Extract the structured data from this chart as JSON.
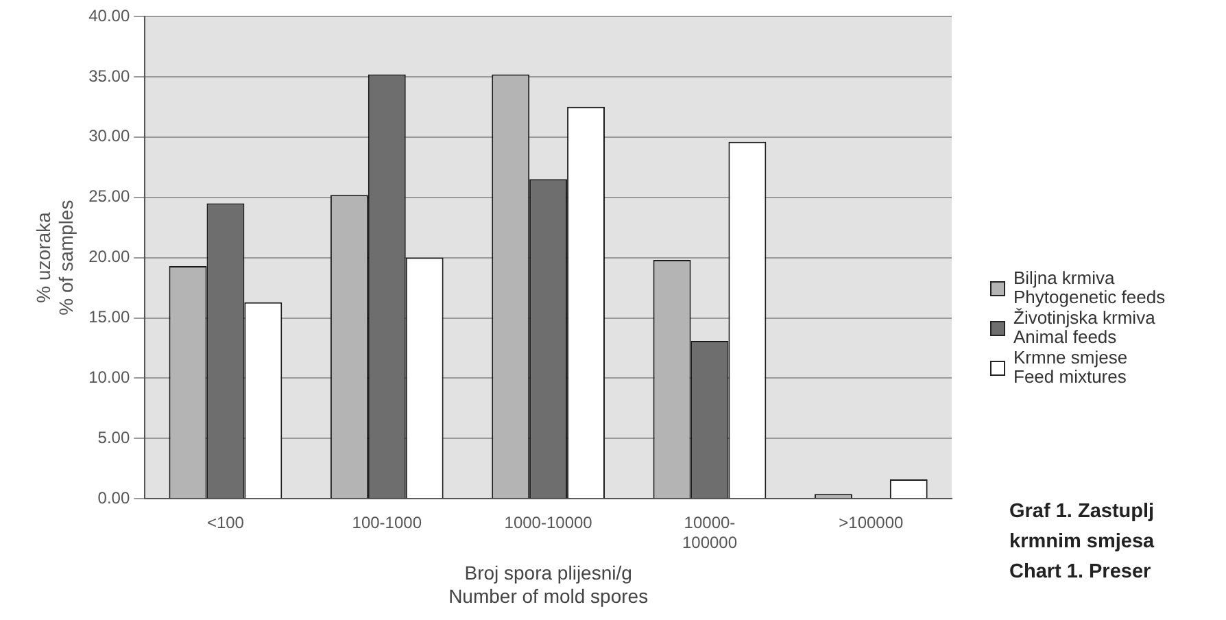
{
  "chart_data": {
    "type": "bar",
    "xlabel": "Broj spora plijesni/g\nNumber of mold spores",
    "ylabel": "% uzoraka\n% of samples",
    "categories": [
      "<100",
      "100-1000",
      "1000-10000",
      "10000-100000",
      ">100000"
    ],
    "series": [
      {
        "name": "Biljna krmiva\nPhytogenetic feeds",
        "color": "#b4b4b4",
        "values": [
          19.3,
          25.2,
          35.2,
          19.8,
          0.4
        ]
      },
      {
        "name": "Životinjska krmiva\nAnimal feeds",
        "color": "#6e6e6e",
        "values": [
          24.5,
          35.2,
          26.5,
          13.1,
          0
        ]
      },
      {
        "name": "Krmne smjese\nFeed mixtures",
        "color": "#ffffff",
        "values": [
          16.3,
          20.0,
          32.5,
          29.6,
          1.6
        ]
      }
    ],
    "ylim": [
      0,
      40
    ],
    "yticks": [
      {
        "value": 0,
        "label": "0.00"
      },
      {
        "value": 5,
        "label": "5.00"
      },
      {
        "value": 10,
        "label": "10.00"
      },
      {
        "value": 15,
        "label": "15.00"
      },
      {
        "value": 20,
        "label": "20.00"
      },
      {
        "value": 25,
        "label": "25.00"
      },
      {
        "value": 30,
        "label": "30.00"
      },
      {
        "value": 35,
        "label": "35.00"
      },
      {
        "value": 40,
        "label": "40.00"
      }
    ],
    "grid": "y",
    "legend": "right",
    "annotations": [
      "Graf 1. Zastuplj",
      "krmnim smjesa",
      "Chart 1. Preser"
    ]
  }
}
